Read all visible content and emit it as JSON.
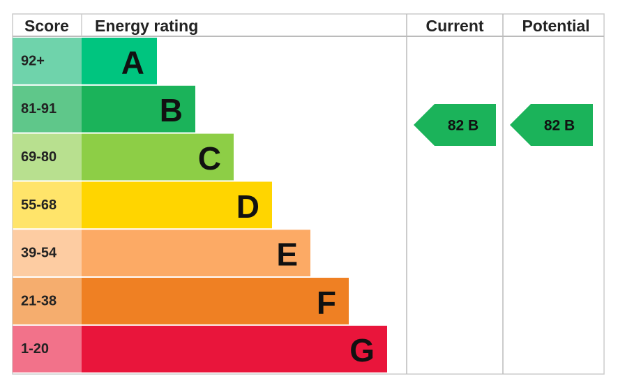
{
  "header": {
    "score": "Score",
    "energy_rating": "Energy rating",
    "current": "Current",
    "potential": "Potential"
  },
  "rows": [
    {
      "score": "92+",
      "letter": "A"
    },
    {
      "score": "81-91",
      "letter": "B"
    },
    {
      "score": "69-80",
      "letter": "C"
    },
    {
      "score": "55-68",
      "letter": "D"
    },
    {
      "score": "39-54",
      "letter": "E"
    },
    {
      "score": "21-38",
      "letter": "F"
    },
    {
      "score": "1-20",
      "letter": "G"
    }
  ],
  "current": "82 B",
  "potential": "82 B"
}
